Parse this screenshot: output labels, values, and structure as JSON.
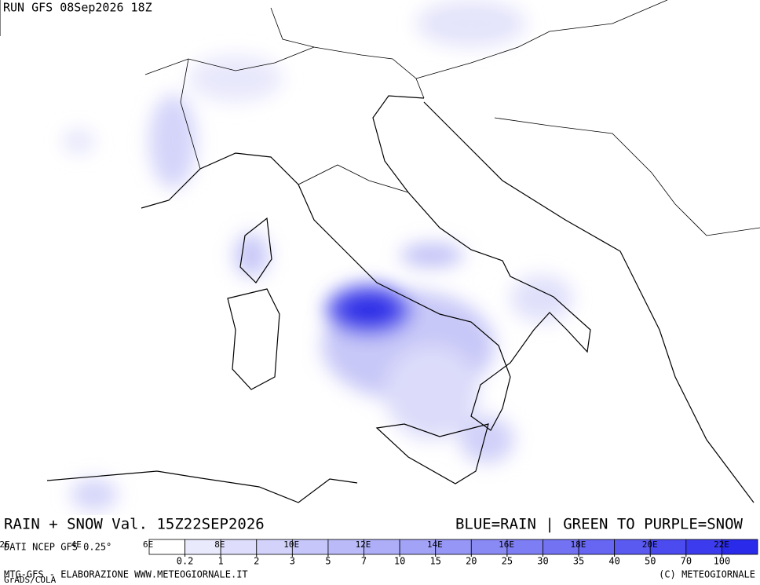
{
  "header": {
    "run": "RUN GFS 08Sep2026 18Z"
  },
  "footer": {
    "title": "RAIN + SNOW Val. 15Z22SEP2026",
    "legend_note": "BLUE=RAIN | GREEN TO PURPLE=SNOW",
    "source": "DATI NCEP GFS 0.25°",
    "credit": "MTG-GFS - ELABORAZIONE WWW.METEOGIORNALE.IT",
    "copyright": "(C) METEOGIORNALE",
    "software": "GrADS/COLA"
  },
  "map": {
    "lon_labels": [
      "2E",
      "4E",
      "6E",
      "8E",
      "10E",
      "12E",
      "14E",
      "16E",
      "18E",
      "20E",
      "22E"
    ]
  },
  "legend": {
    "levels": [
      0.2,
      1,
      2,
      3,
      5,
      7,
      10,
      15,
      20,
      25,
      30,
      35,
      40,
      50,
      70,
      100
    ],
    "colors": [
      "#ffffff",
      "#eaeafd",
      "#dedefc",
      "#d2d2fb",
      "#c6c6fa",
      "#babaf9",
      "#aeaef8",
      "#a2a2f7",
      "#9696f6",
      "#8a8af5",
      "#7e7ef4",
      "#7272f3",
      "#6666f2",
      "#5a5af1",
      "#4b4bef",
      "#3c3cee",
      "#2a2aea"
    ]
  }
}
